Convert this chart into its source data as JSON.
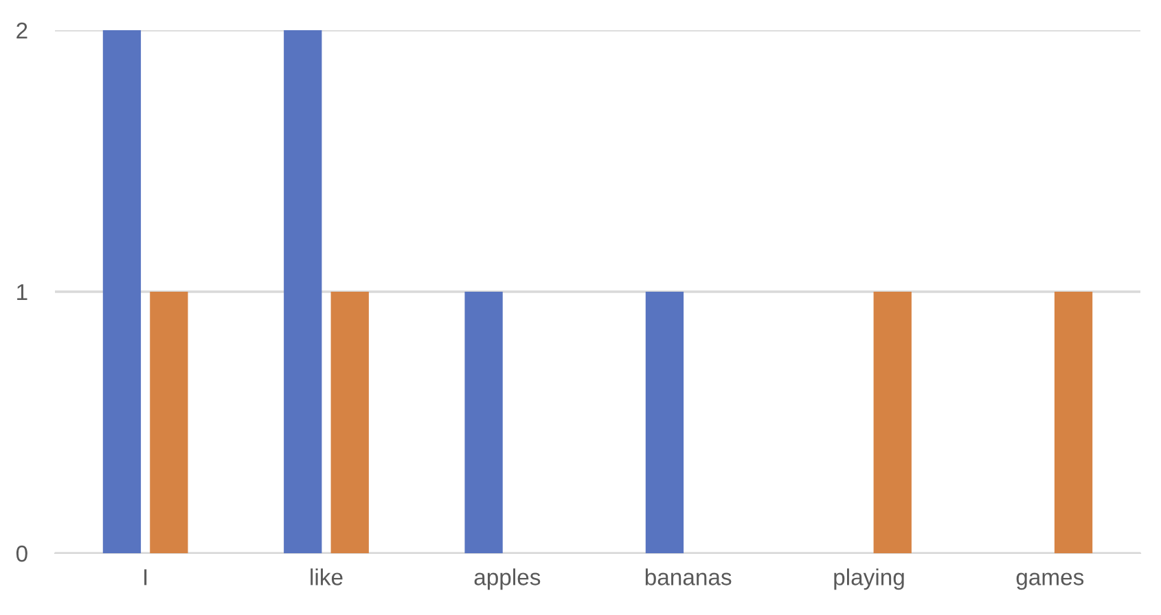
{
  "chart_data": {
    "type": "bar",
    "categories": [
      "I",
      "like",
      "apples",
      "bananas",
      "playing",
      "games"
    ],
    "series": [
      {
        "color": "#5874c0",
        "values": [
          2,
          2,
          1,
          1,
          0,
          0
        ]
      },
      {
        "color": "#d68344",
        "values": [
          1,
          1,
          0,
          0,
          1,
          1
        ]
      }
    ],
    "ylim": [
      0,
      2
    ],
    "yticks": [
      0,
      1,
      2
    ],
    "grid": "y"
  }
}
